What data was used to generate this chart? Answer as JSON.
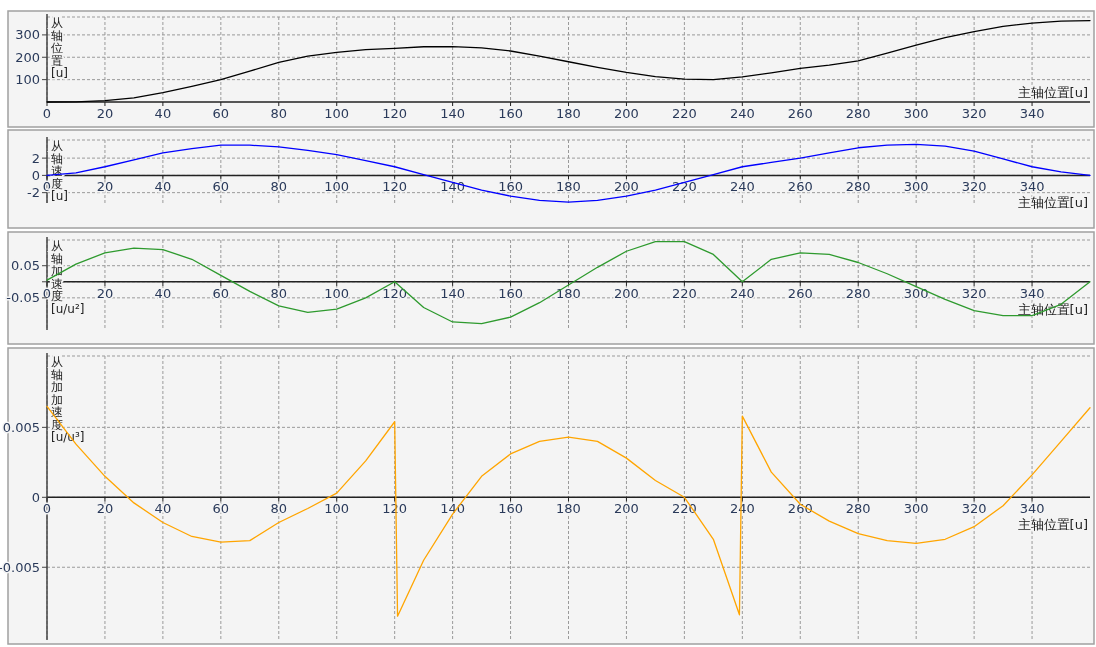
{
  "chart_data": [
    {
      "type": "line",
      "xlabel": "主轴位置[u]",
      "ylabel": "从轴位置[u]",
      "grid": true,
      "xlim": [
        0,
        360
      ],
      "xticks": [
        0,
        20,
        40,
        60,
        80,
        100,
        120,
        140,
        160,
        180,
        200,
        220,
        240,
        260,
        280,
        300,
        320,
        340
      ],
      "ylim": [
        0,
        380
      ],
      "yticks": [
        100,
        200,
        300
      ],
      "x": [
        0,
        10,
        20,
        30,
        40,
        50,
        60,
        70,
        80,
        90,
        100,
        110,
        120,
        130,
        140,
        150,
        160,
        170,
        180,
        190,
        200,
        210,
        220,
        230,
        240,
        250,
        260,
        270,
        280,
        290,
        300,
        310,
        320,
        330,
        340,
        350,
        360
      ],
      "series": [
        {
          "color": "#000000",
          "values": [
            0,
            1,
            6,
            18,
            42,
            70,
            100,
            138,
            177,
            205,
            222,
            234,
            240,
            247,
            248,
            242,
            228,
            205,
            180,
            155,
            132,
            113,
            102,
            100,
            112,
            130,
            150,
            165,
            184,
            218,
            254,
            288,
            315,
            338,
            353,
            362,
            364
          ]
        }
      ]
    },
    {
      "type": "line",
      "xlabel": "主轴位置[u]",
      "ylabel": "从轴速度[u]",
      "grid": true,
      "xlim": [
        0,
        360
      ],
      "xticks": [
        0,
        20,
        40,
        60,
        80,
        100,
        120,
        140,
        160,
        180,
        200,
        220,
        240,
        260,
        280,
        300,
        320,
        340
      ],
      "ylim": [
        -3.2,
        4.1
      ],
      "yticks": [
        -2,
        0,
        2
      ],
      "x": [
        0,
        10,
        20,
        30,
        40,
        50,
        60,
        70,
        80,
        90,
        100,
        110,
        120,
        130,
        140,
        150,
        160,
        170,
        180,
        190,
        200,
        210,
        220,
        230,
        240,
        250,
        260,
        270,
        280,
        290,
        300,
        310,
        320,
        330,
        340,
        350,
        360
      ],
      "series": [
        {
          "color": "#0000ff",
          "values": [
            0,
            0.3,
            1.0,
            1.8,
            2.6,
            3.1,
            3.5,
            3.5,
            3.3,
            2.9,
            2.4,
            1.7,
            1.0,
            0.1,
            -0.8,
            -1.7,
            -2.4,
            -2.9,
            -3.1,
            -2.9,
            -2.4,
            -1.7,
            -0.8,
            0.1,
            1.0,
            1.5,
            2.0,
            2.6,
            3.2,
            3.5,
            3.6,
            3.4,
            2.8,
            1.9,
            1.0,
            0.4,
            0
          ]
        }
      ]
    },
    {
      "type": "line",
      "xlabel": "主轴位置[u]",
      "ylabel": "从轴加速度[u/u²]",
      "grid": true,
      "xlim": [
        0,
        360
      ],
      "xticks": [
        0,
        20,
        40,
        60,
        80,
        100,
        120,
        140,
        160,
        180,
        200,
        220,
        240,
        260,
        280,
        300,
        320,
        340
      ],
      "ylim": [
        -0.15,
        0.13
      ],
      "yticks": [
        -0.05,
        {
          "value": 0,
          "label": null
        },
        0.05
      ],
      "x": [
        0,
        10,
        20,
        30,
        40,
        50,
        60,
        70,
        80,
        90,
        100,
        110,
        120,
        130,
        140,
        150,
        160,
        170,
        180,
        190,
        200,
        210,
        220,
        230,
        240,
        250,
        260,
        270,
        280,
        290,
        300,
        310,
        320,
        330,
        340,
        350,
        360
      ],
      "series": [
        {
          "color": "#2e9a2e",
          "values": [
            0.005,
            0.055,
            0.09,
            0.105,
            0.1,
            0.07,
            0.02,
            -0.03,
            -0.075,
            -0.095,
            -0.085,
            -0.05,
            0,
            -0.08,
            -0.125,
            -0.13,
            -0.11,
            -0.065,
            -0.01,
            0.045,
            0.095,
            0.125,
            0.125,
            0.085,
            0,
            0.07,
            0.09,
            0.085,
            0.06,
            0.025,
            -0.015,
            -0.055,
            -0.09,
            -0.105,
            -0.105,
            -0.07,
            0
          ]
        }
      ]
    },
    {
      "type": "line",
      "xlabel": "主轴位置[u]",
      "ylabel": "从轴加加速度[u/u³]",
      "grid": true,
      "xlim": [
        0,
        360
      ],
      "xticks": [
        0,
        20,
        40,
        60,
        80,
        100,
        120,
        140,
        160,
        180,
        200,
        220,
        240,
        260,
        280,
        300,
        320,
        340
      ],
      "ylim": [
        -0.0102,
        0.0101
      ],
      "yticks": [
        -0.005,
        0,
        0.005
      ],
      "x": [
        0,
        10,
        20,
        30,
        40,
        50,
        60,
        70,
        80,
        90,
        100,
        110,
        120,
        121,
        130,
        140,
        150,
        160,
        170,
        180,
        190,
        200,
        210,
        220,
        230,
        239,
        240,
        250,
        260,
        270,
        280,
        290,
        300,
        310,
        320,
        330,
        340,
        350,
        360
      ],
      "series": [
        {
          "color": "#ffa500",
          "values": [
            0.0065,
            0.0038,
            0.0015,
            -0.0004,
            -0.0018,
            -0.0028,
            -0.0032,
            -0.0031,
            -0.0018,
            -0.0008,
            0.0003,
            0.0026,
            0.0054,
            -0.0085,
            -0.0045,
            -0.0012,
            0.0015,
            0.0031,
            0.004,
            0.0043,
            0.004,
            0.0028,
            0.0012,
            0,
            -0.003,
            -0.0084,
            0.0058,
            0.0018,
            -0.0005,
            -0.0017,
            -0.0026,
            -0.0031,
            -0.0033,
            -0.003,
            -0.0021,
            -0.0006,
            0.0016,
            0.004,
            0.0064
          ]
        }
      ]
    }
  ]
}
